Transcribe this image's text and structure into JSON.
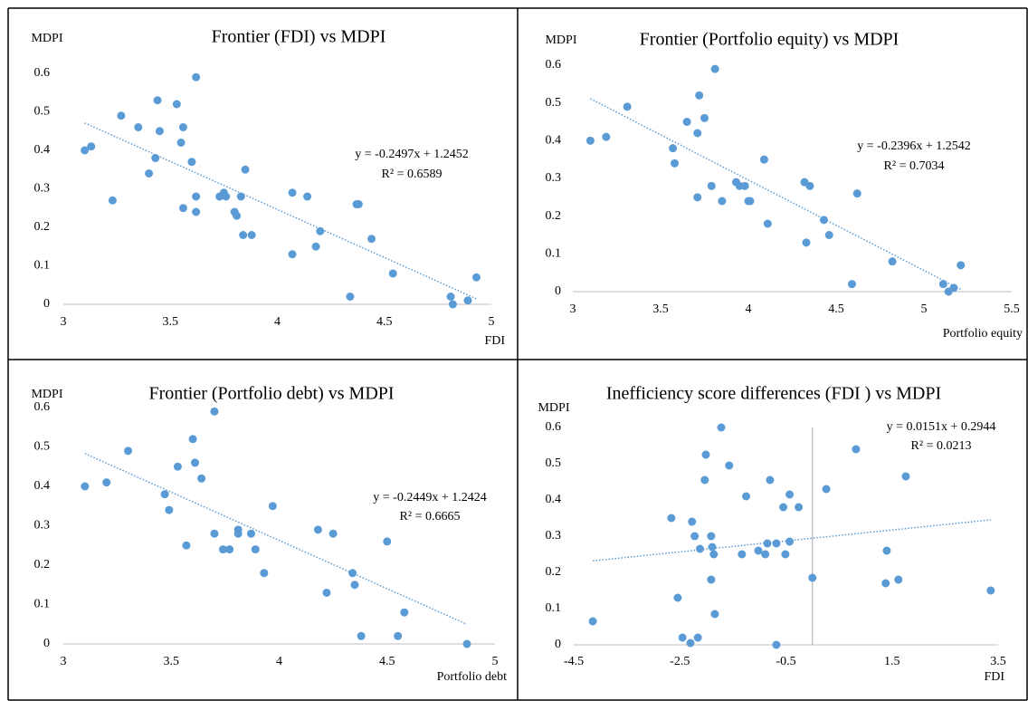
{
  "chart_data": [
    {
      "type": "scatter",
      "title": "Frontier (FDI) vs MDPI",
      "y_label": "MDPI",
      "x_label": "FDI",
      "color": "#5b9bd5",
      "x": [
        3.1,
        3.13,
        3.23,
        3.27,
        3.35,
        3.4,
        3.43,
        3.44,
        3.45,
        3.53,
        3.55,
        3.56,
        3.56,
        3.6,
        3.62,
        3.62,
        3.62,
        3.73,
        3.75,
        3.76,
        3.8,
        3.81,
        3.83,
        3.85,
        3.84,
        3.88,
        4.07,
        4.07,
        4.14,
        4.18,
        4.2,
        4.34,
        4.37,
        4.38,
        4.44,
        4.54,
        4.81,
        4.82,
        4.89,
        4.93
      ],
      "values": [
        0.4,
        0.41,
        0.27,
        0.49,
        0.46,
        0.34,
        0.38,
        0.53,
        0.45,
        0.52,
        0.42,
        0.46,
        0.25,
        0.37,
        0.59,
        0.28,
        0.24,
        0.28,
        0.29,
        0.28,
        0.24,
        0.23,
        0.28,
        0.35,
        0.18,
        0.18,
        0.29,
        0.13,
        0.28,
        0.15,
        0.19,
        0.02,
        0.26,
        0.26,
        0.17,
        0.08,
        0.02,
        0.0,
        0.01,
        0.07
      ],
      "trendline": {
        "slope": -0.2497,
        "intercept": 1.2452,
        "equation": "y = -0.2497x + 1.2452",
        "r2": "R² = 0.6589"
      },
      "xlim": [
        3,
        5
      ],
      "xticks": [
        3,
        3.5,
        4,
        4.5,
        5
      ],
      "ylim": [
        0,
        0.6
      ],
      "yticks": [
        0,
        0.1,
        0.2,
        0.3,
        0.4,
        0.5,
        0.6
      ]
    },
    {
      "type": "scatter",
      "title": "Frontier (Portfolio equity) vs MDPI",
      "y_label": "MDPI",
      "x_label": "Portfolio equity",
      "color": "#5b9bd5",
      "x": [
        3.1,
        3.19,
        3.31,
        3.57,
        3.58,
        3.65,
        3.71,
        3.72,
        3.75,
        3.71,
        3.79,
        3.81,
        3.85,
        3.93,
        3.95,
        3.98,
        4.0,
        4.01,
        4.09,
        4.11,
        4.32,
        4.33,
        4.35,
        4.43,
        4.46,
        4.59,
        4.62,
        4.82,
        5.11,
        5.14,
        5.17,
        5.21
      ],
      "values": [
        0.4,
        0.41,
        0.49,
        0.38,
        0.34,
        0.45,
        0.42,
        0.52,
        0.46,
        0.25,
        0.28,
        0.59,
        0.24,
        0.29,
        0.28,
        0.28,
        0.24,
        0.24,
        0.35,
        0.18,
        0.29,
        0.13,
        0.28,
        0.19,
        0.15,
        0.02,
        0.26,
        0.08,
        0.02,
        0.0,
        0.01,
        0.07
      ],
      "trendline": {
        "slope": -0.2396,
        "intercept": 1.2542,
        "equation": "y = -0.2396x + 1.2542",
        "r2": "R² = 0.7034"
      },
      "xlim": [
        3,
        5.5
      ],
      "xticks": [
        3,
        3.5,
        4,
        4.5,
        5,
        5.5
      ],
      "ylim": [
        0,
        0.6
      ],
      "yticks": [
        0,
        0.1,
        0.2,
        0.3,
        0.4,
        0.5,
        0.6
      ]
    },
    {
      "type": "scatter",
      "title": "Frontier (Portfolio debt) vs MDPI",
      "y_label": "MDPI",
      "x_label": "Portfolio debt",
      "color": "#5b9bd5",
      "x": [
        3.1,
        3.2,
        3.3,
        3.47,
        3.49,
        3.53,
        3.57,
        3.6,
        3.61,
        3.64,
        3.7,
        3.7,
        3.74,
        3.77,
        3.81,
        3.81,
        3.87,
        3.89,
        3.93,
        3.97,
        4.18,
        4.22,
        4.25,
        4.34,
        4.35,
        4.38,
        4.5,
        4.55,
        4.58,
        4.87
      ],
      "values": [
        0.4,
        0.41,
        0.49,
        0.38,
        0.34,
        0.45,
        0.25,
        0.52,
        0.46,
        0.42,
        0.59,
        0.28,
        0.24,
        0.24,
        0.29,
        0.28,
        0.28,
        0.24,
        0.18,
        0.35,
        0.29,
        0.13,
        0.28,
        0.18,
        0.15,
        0.02,
        0.26,
        0.02,
        0.08,
        0.0
      ],
      "trendline": {
        "slope": -0.2449,
        "intercept": 1.2424,
        "equation": "y = -0.2449x + 1.2424",
        "r2": "R² = 0.6665"
      },
      "xlim": [
        3,
        5
      ],
      "xticks": [
        3,
        3.5,
        4,
        4.5,
        5
      ],
      "ylim": [
        0,
        0.6
      ],
      "yticks": [
        0,
        0.1,
        0.2,
        0.3,
        0.4,
        0.5,
        0.6
      ]
    },
    {
      "type": "scatter",
      "title": "Inefficiency score differences (FDI ) vs MDPI",
      "y_label": "MDPI",
      "x_label": "FDI",
      "color": "#5b9bd5",
      "x": [
        -4.14,
        -2.54,
        -2.45,
        -2.3,
        -2.16,
        -2.66,
        -2.27,
        -2.22,
        -2.12,
        -2.03,
        -2.01,
        -1.91,
        -1.89,
        -1.86,
        -1.91,
        -1.84,
        -1.72,
        -1.57,
        -1.33,
        -1.25,
        -1.02,
        -0.89,
        -0.85,
        -0.8,
        -0.68,
        -0.68,
        -0.55,
        -0.51,
        -0.43,
        -0.43,
        -0.26,
        0.0,
        0.26,
        0.82,
        1.4,
        1.38,
        1.62,
        1.76,
        3.36
      ],
      "values": [
        0.065,
        0.13,
        0.02,
        0.005,
        0.02,
        0.35,
        0.34,
        0.3,
        0.265,
        0.455,
        0.525,
        0.3,
        0.27,
        0.25,
        0.18,
        0.085,
        0.6,
        0.495,
        0.25,
        0.41,
        0.26,
        0.25,
        0.28,
        0.455,
        0.28,
        0.0,
        0.38,
        0.25,
        0.285,
        0.415,
        0.38,
        0.185,
        0.43,
        0.54,
        0.26,
        0.17,
        0.18,
        0.465,
        0.15
      ],
      "trendline": {
        "slope": 0.0151,
        "intercept": 0.2944,
        "equation": "y = 0.0151x + 0.2944",
        "r2": "R² = 0.0213"
      },
      "xlim": [
        -4.5,
        3.5
      ],
      "xticks": [
        -4.5,
        -2.5,
        -0.5,
        1.5,
        3.5
      ],
      "ylim": [
        0,
        0.6
      ],
      "yticks": [
        0,
        0.1,
        0.2,
        0.3,
        0.4,
        0.5,
        0.6
      ],
      "zero_line": true
    }
  ]
}
